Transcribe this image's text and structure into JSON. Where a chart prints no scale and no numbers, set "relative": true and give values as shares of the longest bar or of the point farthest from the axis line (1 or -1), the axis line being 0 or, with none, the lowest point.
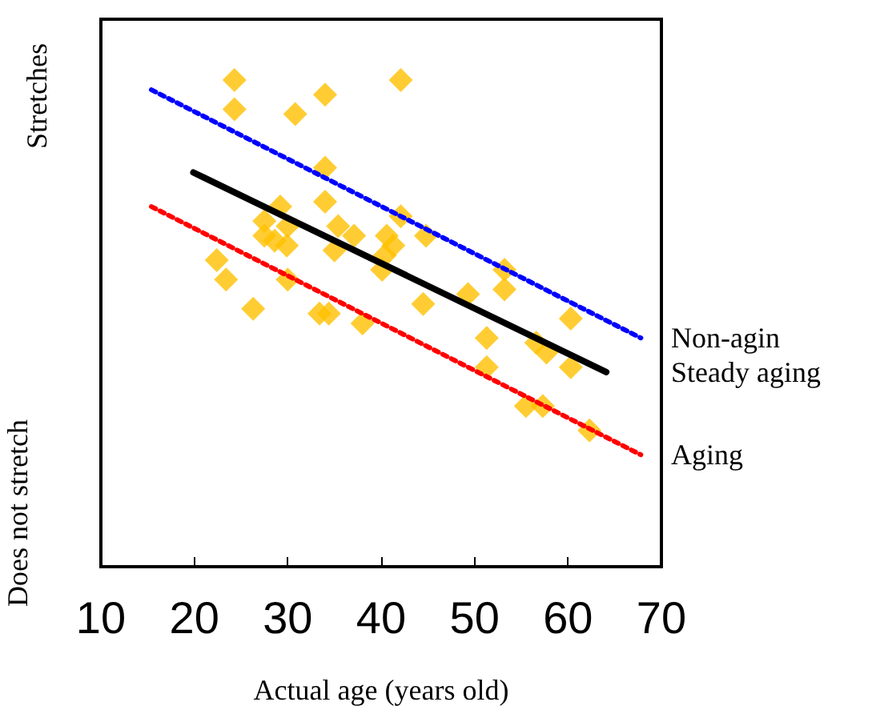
{
  "chart_data": {
    "type": "scatter",
    "relative": true,
    "xlabel": "Actual age (years old)",
    "annotations": [
      "Stretches",
      "Does not stretch"
    ],
    "xlim": [
      10,
      70
    ],
    "xticks": [
      10,
      20,
      30,
      40,
      50,
      60,
      70
    ],
    "grid": false,
    "legend": false,
    "series": [
      {
        "color": "#ffc000",
        "marker": "diamond",
        "x": [
          24.3,
          24.3,
          30.8,
          34.0,
          42.1,
          34.0,
          34.0,
          27.5,
          29.2,
          30.0,
          28.6,
          29.9,
          27.5,
          35.4,
          37.1,
          35.0,
          40.6,
          42.1,
          40.4,
          41.3,
          44.8,
          40.1,
          22.4,
          23.4,
          30.0,
          26.3,
          33.4,
          34.4,
          38.0,
          44.5,
          49.3,
          53.2,
          53.2,
          51.3,
          51.3,
          56.6,
          57.7,
          60.3,
          60.3,
          55.5,
          57.3,
          62.3
        ],
        "values": [
          1.0,
          0.94,
          0.93,
          0.97,
          1.0,
          0.82,
          0.75,
          0.71,
          0.74,
          0.7,
          0.67,
          0.66,
          0.68,
          0.7,
          0.68,
          0.65,
          0.68,
          0.72,
          0.64,
          0.66,
          0.68,
          0.61,
          0.63,
          0.59,
          0.59,
          0.53,
          0.52,
          0.52,
          0.5,
          0.54,
          0.56,
          0.61,
          0.57,
          0.47,
          0.41,
          0.46,
          0.44,
          0.51,
          0.41,
          0.33,
          0.33,
          0.28
        ]
      },
      {
        "type": "line",
        "name": "Non-agin",
        "color": "#0000ff",
        "marker": "none",
        "line_style": "dotted",
        "x": [
          15.4,
          67.8
        ],
        "values": [
          0.98,
          0.47
        ]
      },
      {
        "type": "line",
        "name": "Steady aging",
        "color": "#000000",
        "marker": "none",
        "line_style": "solid",
        "x": [
          19.9,
          64.1
        ],
        "values": [
          0.81,
          0.4
        ]
      },
      {
        "type": "line",
        "name": "Aging",
        "color": "#ff0000",
        "marker": "none",
        "line_style": "dotted",
        "x": [
          15.4,
          67.8
        ],
        "values": [
          0.74,
          0.23
        ]
      }
    ]
  }
}
